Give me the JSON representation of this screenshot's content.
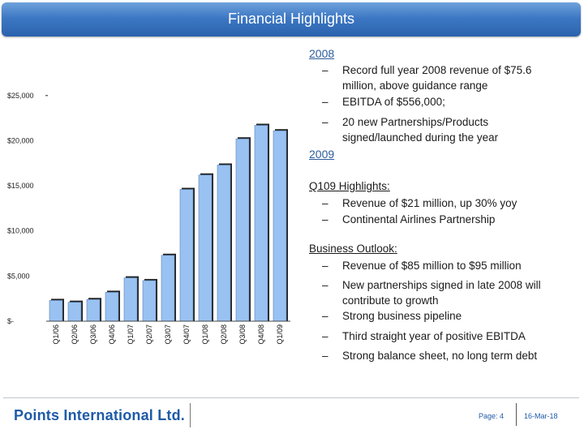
{
  "header": {
    "title": "Financial Highlights"
  },
  "chart_data": {
    "type": "bar",
    "categories": [
      "Q1/06",
      "Q2/06",
      "Q3/06",
      "Q4/06",
      "Q1/07",
      "Q2/07",
      "Q3/07",
      "Q4/07",
      "Q1/08",
      "Q2/08",
      "Q3/08",
      "Q4/08",
      "Q1/09"
    ],
    "values": [
      2300,
      2100,
      2400,
      3200,
      4800,
      4500,
      7300,
      14600,
      16200,
      17300,
      20200,
      21700,
      21100
    ],
    "ylim": [
      0,
      27500
    ],
    "yticks": [
      0,
      5000,
      10000,
      15000,
      20000,
      25000
    ],
    "ytick_labels": [
      "$-",
      "$5,000",
      "$10,000",
      "$15,000",
      "$20,000",
      "$25,000"
    ],
    "bar_color": "#99c2f2",
    "bar_shadow": "#222222",
    "grid": false
  },
  "highlights": {
    "y2008": "2008",
    "b2008": [
      {
        "dash": "–",
        "lines": [
          "Record full year 2008 revenue of $75.6",
          "million, above guidance range"
        ]
      },
      {
        "dash": "–",
        "lines": [
          "EBITDA of $556,000;"
        ]
      },
      {
        "dash": "–",
        "lines": [
          "20 new Partnerships/Products",
          "signed/launched during the year"
        ]
      }
    ],
    "y2009": "2009",
    "q1_title": "Q109 Highlights:",
    "q1": [
      {
        "dash": "–",
        "text": "Revenue of $21 million, up 30% yoy"
      },
      {
        "dash": "–",
        "text": "Continental Airlines Partnership"
      }
    ],
    "outlook_title": "Business Outlook:",
    "outlook": [
      {
        "dash": "–",
        "lines": [
          "Revenue of $85 million to $95 million"
        ]
      },
      {
        "dash": "–",
        "lines": [
          "New partnerships signed in late 2008 will",
          "contribute to growth"
        ]
      },
      {
        "dash": "–",
        "lines": [
          "Strong business pipeline"
        ]
      },
      {
        "dash": "–",
        "lines": [
          "Third straight year of positive EBITDA"
        ]
      },
      {
        "dash": "–",
        "lines": [
          "Strong balance sheet, no long term debt"
        ]
      }
    ]
  },
  "footer": {
    "logo": "Points International Ltd.",
    "page": "Page: 4",
    "date": "16-Mar-18"
  }
}
